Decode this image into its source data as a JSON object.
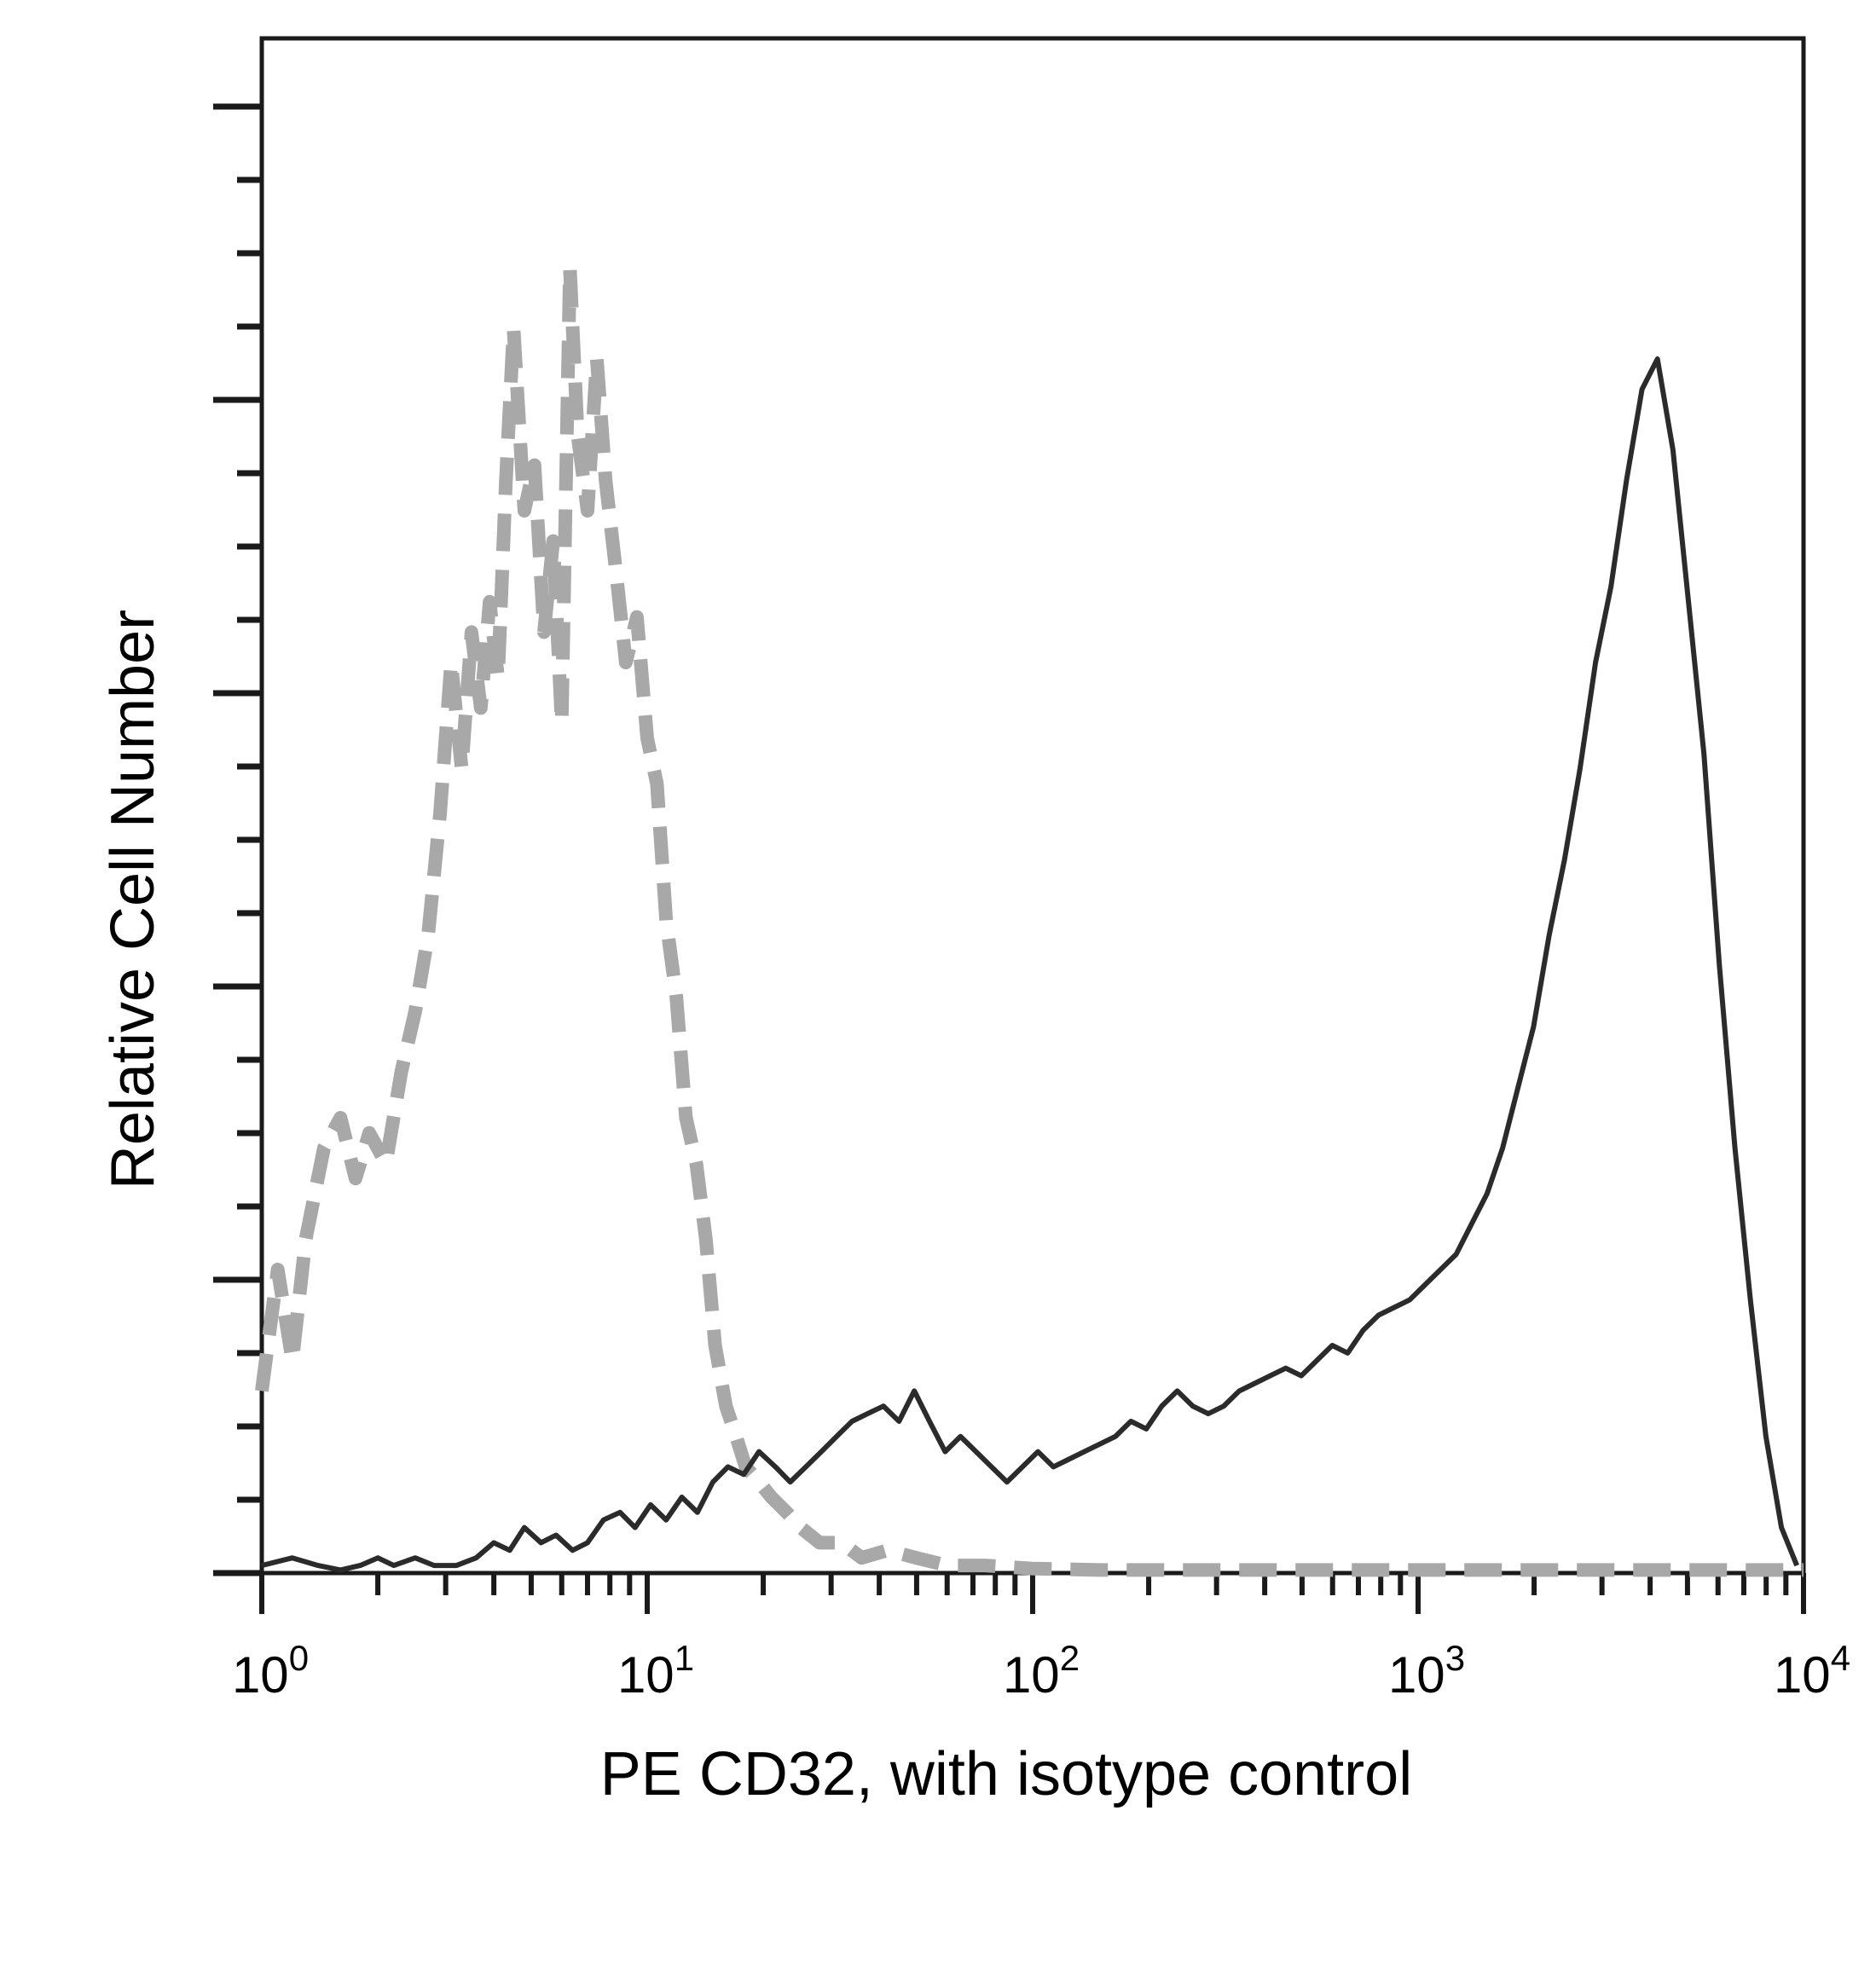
{
  "chart_data": {
    "type": "line",
    "title": "",
    "xlabel": "PE CD32, with isotype control",
    "ylabel": "Relative Cell Number",
    "x_scale": "log",
    "xlim": [
      1,
      10000
    ],
    "ylim": [
      0,
      100
    ],
    "grid": false,
    "legend": "none",
    "x_ticks": [
      {
        "value": 1,
        "base": "10",
        "exp": "0"
      },
      {
        "value": 10,
        "base": "10",
        "exp": "1"
      },
      {
        "value": 100,
        "base": "10",
        "exp": "2"
      },
      {
        "value": 1000,
        "base": "10",
        "exp": "3"
      },
      {
        "value": 10000,
        "base": "10",
        "exp": "4"
      }
    ],
    "series": [
      {
        "style": "dashed",
        "color": "#a8a8a8",
        "points": [
          [
            1.0,
            12
          ],
          [
            1.1,
            20
          ],
          [
            1.2,
            14
          ],
          [
            1.3,
            22
          ],
          [
            1.45,
            28
          ],
          [
            1.6,
            30
          ],
          [
            1.75,
            26
          ],
          [
            1.9,
            29
          ],
          [
            2.1,
            27
          ],
          [
            2.3,
            33
          ],
          [
            2.5,
            37
          ],
          [
            2.7,
            42
          ],
          [
            2.9,
            50
          ],
          [
            3.1,
            60
          ],
          [
            3.3,
            53
          ],
          [
            3.5,
            62
          ],
          [
            3.7,
            57
          ],
          [
            3.9,
            64
          ],
          [
            4.1,
            59
          ],
          [
            4.3,
            72
          ],
          [
            4.5,
            82
          ],
          [
            4.8,
            70
          ],
          [
            5.1,
            73
          ],
          [
            5.4,
            62
          ],
          [
            5.7,
            68
          ],
          [
            6.0,
            56
          ],
          [
            6.3,
            86
          ],
          [
            6.6,
            75
          ],
          [
            7.0,
            70
          ],
          [
            7.4,
            80
          ],
          [
            7.8,
            72
          ],
          [
            8.3,
            66
          ],
          [
            8.8,
            60
          ],
          [
            9.4,
            63
          ],
          [
            10.0,
            55
          ],
          [
            10.6,
            52
          ],
          [
            11.2,
            43
          ],
          [
            11.9,
            38
          ],
          [
            12.6,
            30
          ],
          [
            13.4,
            27
          ],
          [
            14.2,
            22
          ],
          [
            15.0,
            15
          ],
          [
            16.0,
            11
          ],
          [
            17.0,
            9
          ],
          [
            18.0,
            7
          ],
          [
            19.5,
            6
          ],
          [
            21.0,
            5
          ],
          [
            23.0,
            4
          ],
          [
            25.0,
            3
          ],
          [
            28.0,
            2
          ],
          [
            32.0,
            2
          ],
          [
            36.0,
            1
          ],
          [
            42.0,
            1.5
          ],
          [
            50.0,
            1
          ],
          [
            60.0,
            0.5
          ],
          [
            75.0,
            0.5
          ],
          [
            100.0,
            0.3
          ],
          [
            150.0,
            0.2
          ],
          [
            300.0,
            0.2
          ],
          [
            1000.0,
            0.2
          ],
          [
            3000.0,
            0.2
          ],
          [
            10000.0,
            0.2
          ]
        ]
      },
      {
        "style": "solid",
        "color": "#2b2b2b",
        "points": [
          [
            1.0,
            0.5
          ],
          [
            1.2,
            1
          ],
          [
            1.4,
            0.5
          ],
          [
            1.6,
            0.2
          ],
          [
            1.8,
            0.5
          ],
          [
            2.0,
            1
          ],
          [
            2.2,
            0.5
          ],
          [
            2.5,
            1
          ],
          [
            2.8,
            0.5
          ],
          [
            3.2,
            0.5
          ],
          [
            3.6,
            1
          ],
          [
            4.0,
            2
          ],
          [
            4.4,
            1.5
          ],
          [
            4.8,
            3
          ],
          [
            5.3,
            2
          ],
          [
            5.8,
            2.5
          ],
          [
            6.4,
            1.5
          ],
          [
            7.0,
            2
          ],
          [
            7.7,
            3.5
          ],
          [
            8.5,
            4
          ],
          [
            9.3,
            3
          ],
          [
            10.2,
            4.5
          ],
          [
            11.2,
            3.5
          ],
          [
            12.3,
            5
          ],
          [
            13.5,
            4
          ],
          [
            14.8,
            6
          ],
          [
            16.2,
            7
          ],
          [
            17.8,
            6.5
          ],
          [
            19.5,
            8
          ],
          [
            21.5,
            7
          ],
          [
            23.5,
            6
          ],
          [
            25.8,
            7
          ],
          [
            28.3,
            8
          ],
          [
            31.0,
            9
          ],
          [
            34.0,
            10
          ],
          [
            37.3,
            10.5
          ],
          [
            41.0,
            11
          ],
          [
            45.0,
            10
          ],
          [
            49.3,
            12
          ],
          [
            54.0,
            10
          ],
          [
            59.3,
            8
          ],
          [
            65.0,
            9
          ],
          [
            71.3,
            8
          ],
          [
            78.2,
            7
          ],
          [
            85.8,
            6
          ],
          [
            94.1,
            7
          ],
          [
            103.2,
            8
          ],
          [
            113.2,
            7
          ],
          [
            124.2,
            7.5
          ],
          [
            136.2,
            8
          ],
          [
            149.4,
            8.5
          ],
          [
            163.9,
            9
          ],
          [
            179.8,
            10
          ],
          [
            197.2,
            9.5
          ],
          [
            216.3,
            11
          ],
          [
            237.3,
            12
          ],
          [
            260.3,
            11
          ],
          [
            285.5,
            10.5
          ],
          [
            313.2,
            11
          ],
          [
            343.6,
            12
          ],
          [
            376.9,
            12.5
          ],
          [
            413.4,
            13
          ],
          [
            453.5,
            13.5
          ],
          [
            497.5,
            13
          ],
          [
            545.7,
            14
          ],
          [
            598.6,
            15
          ],
          [
            656.6,
            14.5
          ],
          [
            720.3,
            16
          ],
          [
            790.1,
            17
          ],
          [
            866.7,
            17.5
          ],
          [
            950.7,
            18
          ],
          [
            1042.9,
            19
          ],
          [
            1144.0,
            20
          ],
          [
            1254.9,
            21
          ],
          [
            1376.6,
            23
          ],
          [
            1510.1,
            25
          ],
          [
            1656.5,
            28
          ],
          [
            1817.1,
            32
          ],
          [
            1993.3,
            36
          ],
          [
            2186.6,
            42
          ],
          [
            2398.6,
            47
          ],
          [
            2631.2,
            53
          ],
          [
            2886.3,
            60
          ],
          [
            3166.2,
            65
          ],
          [
            3473.2,
            72
          ],
          [
            3809.9,
            78
          ],
          [
            4179.4,
            80
          ],
          [
            4584.6,
            74
          ],
          [
            5029.2,
            64
          ],
          [
            5516.8,
            54
          ],
          [
            6051.7,
            40
          ],
          [
            6638.5,
            28
          ],
          [
            7282.2,
            18
          ],
          [
            7988.3,
            9
          ],
          [
            8762.9,
            3
          ],
          [
            9612.5,
            0.5
          ]
        ]
      }
    ]
  }
}
